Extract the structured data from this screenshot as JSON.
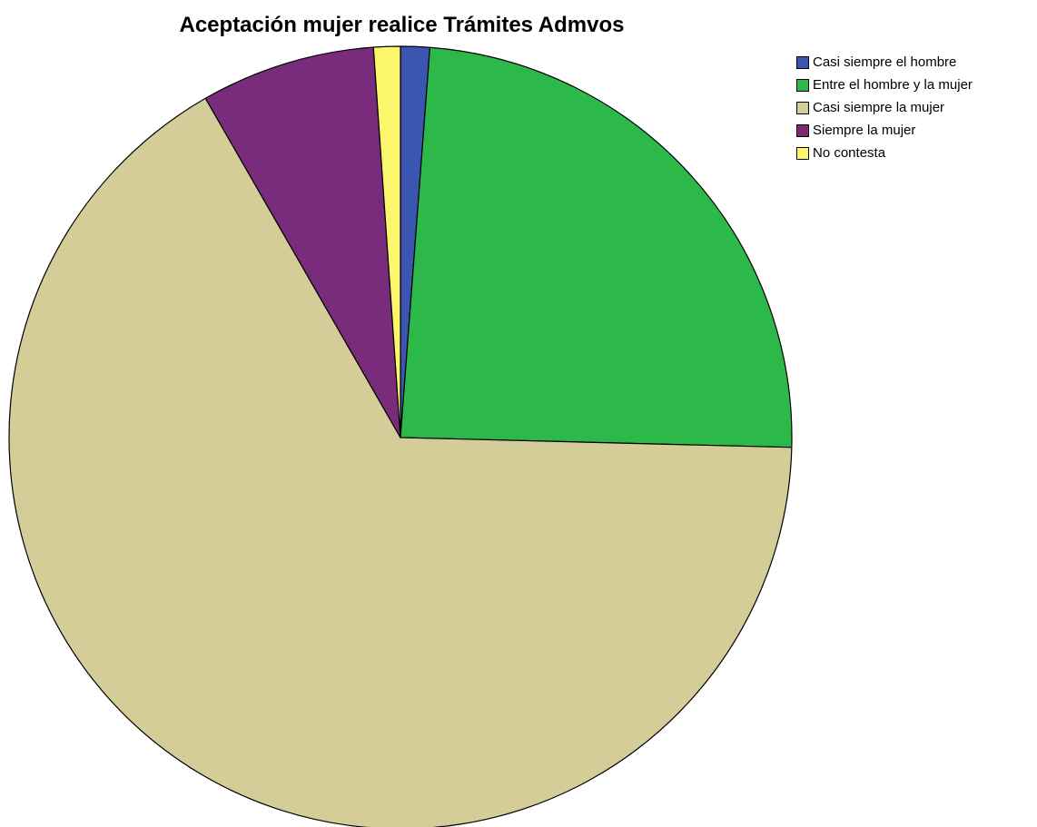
{
  "chart_data": {
    "type": "pie",
    "title": "Aceptación mujer realice Trámites Admvos",
    "slices": [
      {
        "label": "Casi siempre el hombre",
        "value": 1.2,
        "color": "#3a56b0"
      },
      {
        "label": "Entre el hombre y la mujer",
        "value": 24.2,
        "color": "#2db84a"
      },
      {
        "label": "Casi siempre la mujer",
        "value": 66.3,
        "color": "#d4cd97"
      },
      {
        "label": "Siempre la mujer",
        "value": 7.2,
        "color": "#7a2c7c"
      },
      {
        "label": "No contesta",
        "value": 1.1,
        "color": "#fbf66c"
      }
    ],
    "start_angle_deg": 0,
    "direction": "clockwise",
    "legend_position": "top-right"
  }
}
